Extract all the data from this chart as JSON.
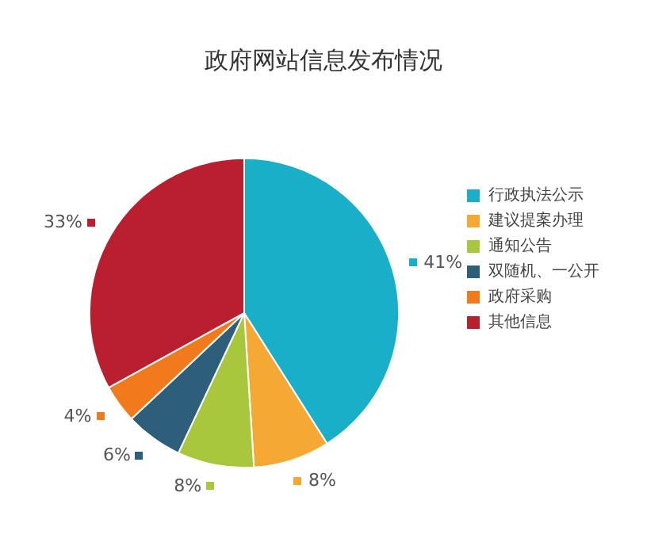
{
  "chart_data": {
    "type": "pie",
    "title": "政府网站信息发布情况",
    "categories": [
      "行政执法公示",
      "建议提案办理",
      "通知公告",
      "双随机、一公开",
      "政府采购",
      "其他信息"
    ],
    "values": [
      41,
      8,
      8,
      6,
      4,
      33
    ],
    "value_labels": [
      "41%",
      "8%",
      "8%",
      "6%",
      "4%",
      "33%"
    ],
    "colors": [
      "#1aafc8",
      "#f5a934",
      "#a9c73c",
      "#2e5f7a",
      "#f07a1c",
      "#b91f2e"
    ],
    "legend": "right"
  }
}
